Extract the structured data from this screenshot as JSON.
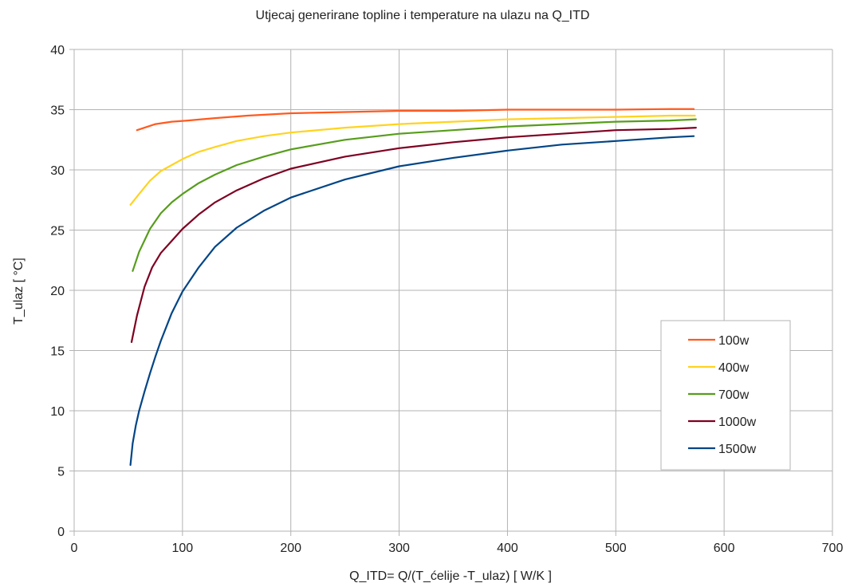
{
  "chart_data": {
    "type": "line",
    "title": "Utjecaj generirane topline i temperature na ulazu na Q_ITD",
    "xlabel": "Q_ITD= Q/(T_ćelije -T_ulaz)  [ W/K ]",
    "ylabel": "T_ulaz [ °C]",
    "xlim": [
      0,
      700
    ],
    "ylim": [
      0,
      40
    ],
    "x_ticks": [
      0,
      100,
      200,
      300,
      400,
      500,
      600,
      700
    ],
    "y_ticks": [
      0,
      5,
      10,
      15,
      20,
      25,
      30,
      35,
      40
    ],
    "grid": true,
    "legend_position": "right",
    "series": [
      {
        "name": "100w",
        "color": "#ff5a1f",
        "x": [
          58,
          65,
          75,
          90,
          105,
          130,
          160,
          200,
          250,
          300,
          350,
          400,
          450,
          500,
          550,
          572
        ],
        "y": [
          33.3,
          33.5,
          33.8,
          34.0,
          34.1,
          34.3,
          34.5,
          34.7,
          34.8,
          34.9,
          34.9,
          35.0,
          35.0,
          35.0,
          35.05,
          35.05
        ]
      },
      {
        "name": "400w",
        "color": "#ffd320",
        "x": [
          52,
          60,
          70,
          80,
          90,
          100,
          115,
          130,
          150,
          175,
          200,
          250,
          300,
          350,
          400,
          450,
          500,
          550,
          573
        ],
        "y": [
          27.1,
          28.0,
          29.1,
          29.9,
          30.4,
          30.9,
          31.5,
          31.9,
          32.4,
          32.8,
          33.1,
          33.5,
          33.8,
          34.0,
          34.2,
          34.3,
          34.4,
          34.5,
          34.5
        ]
      },
      {
        "name": "700w",
        "color": "#579d1c",
        "x": [
          54,
          60,
          70,
          80,
          90,
          100,
          115,
          130,
          150,
          175,
          200,
          250,
          300,
          350,
          400,
          450,
          500,
          550,
          574
        ],
        "y": [
          21.6,
          23.2,
          25.1,
          26.4,
          27.3,
          28.0,
          28.9,
          29.6,
          30.4,
          31.1,
          31.7,
          32.5,
          33.0,
          33.3,
          33.6,
          33.8,
          34.0,
          34.1,
          34.2
        ]
      },
      {
        "name": "1000w",
        "color": "#7e0021",
        "x": [
          53,
          58,
          65,
          72,
          80,
          90,
          100,
          115,
          130,
          150,
          175,
          200,
          250,
          300,
          350,
          400,
          450,
          500,
          550,
          574
        ],
        "y": [
          15.7,
          17.9,
          20.3,
          21.9,
          23.1,
          24.1,
          25.1,
          26.3,
          27.3,
          28.3,
          29.3,
          30.1,
          31.1,
          31.8,
          32.3,
          32.7,
          33.0,
          33.3,
          33.4,
          33.5
        ]
      },
      {
        "name": "1500w",
        "color": "#004586",
        "x": [
          52,
          54,
          57,
          60,
          65,
          70,
          75,
          80,
          90,
          100,
          115,
          130,
          150,
          175,
          200,
          250,
          300,
          350,
          400,
          450,
          500,
          550,
          572
        ],
        "y": [
          5.5,
          7.3,
          8.8,
          10.0,
          11.6,
          13.1,
          14.5,
          15.8,
          18.1,
          19.9,
          21.9,
          23.6,
          25.2,
          26.6,
          27.7,
          29.2,
          30.3,
          31.0,
          31.6,
          32.1,
          32.4,
          32.7,
          32.8
        ]
      }
    ]
  }
}
